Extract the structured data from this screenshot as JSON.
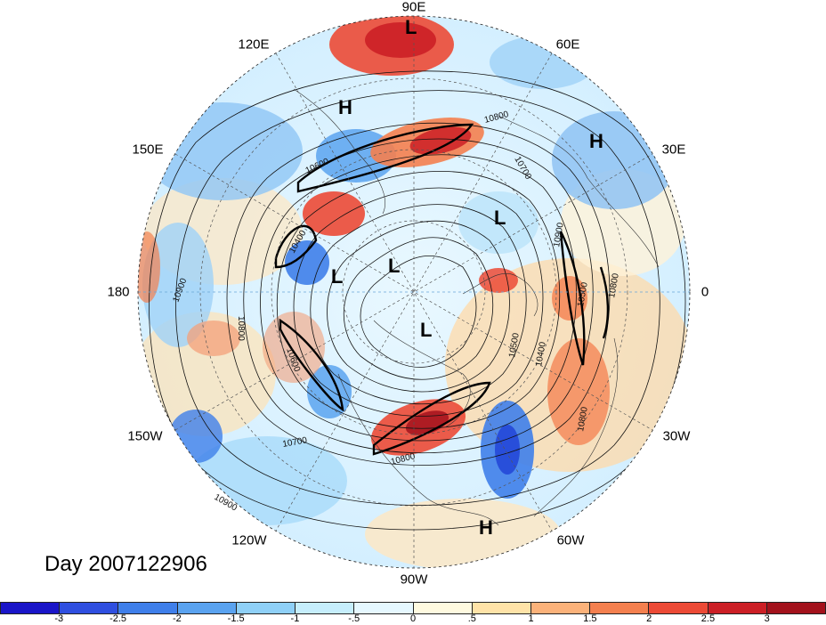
{
  "date_label": "Day 2007122906",
  "longitude_labels": [
    {
      "key": "90E",
      "text": "90E"
    },
    {
      "key": "60E",
      "text": "60E"
    },
    {
      "key": "30E",
      "text": "30E"
    },
    {
      "key": "0",
      "text": "0"
    },
    {
      "key": "30W",
      "text": "30W"
    },
    {
      "key": "60W",
      "text": "60W"
    },
    {
      "key": "90W",
      "text": "90W"
    },
    {
      "key": "120W",
      "text": "120W"
    },
    {
      "key": "150W",
      "text": "150W"
    },
    {
      "key": "180",
      "text": "180"
    },
    {
      "key": "150E",
      "text": "150E"
    },
    {
      "key": "120E",
      "text": "120E"
    }
  ],
  "pressure_systems": [
    {
      "type": "L",
      "near": "90E"
    },
    {
      "type": "H",
      "near": "120E"
    },
    {
      "type": "H",
      "near": "30E"
    },
    {
      "type": "L",
      "near": "north-central"
    },
    {
      "type": "L",
      "near": "180-inner"
    },
    {
      "type": "L",
      "near": "pole"
    },
    {
      "type": "L",
      "near": "90W-inner"
    },
    {
      "type": "H",
      "near": "60W"
    }
  ],
  "contour_labels": [
    "10800",
    "10700",
    "10400",
    "10900",
    "10800",
    "10600",
    "10700",
    "10800",
    "10900",
    "10600",
    "10500",
    "10400",
    "10800",
    "10500",
    "10800",
    "10900"
  ],
  "colorbar": {
    "ticks": [
      "-3",
      "-2.5",
      "-2",
      "-1.5",
      "-1",
      "-.5",
      "0",
      ".5",
      "1",
      "1.5",
      "2",
      "2.5",
      "3"
    ],
    "colors": [
      "#1a15c8",
      "#2f4fe0",
      "#3f7fea",
      "#5aa3f0",
      "#8fd0f7",
      "#c6eefc",
      "#e6f8ff",
      "#fffae0",
      "#ffe3a8",
      "#fbb27a",
      "#f4804f",
      "#ec4a36",
      "#cc1f26",
      "#a3121c"
    ]
  }
}
